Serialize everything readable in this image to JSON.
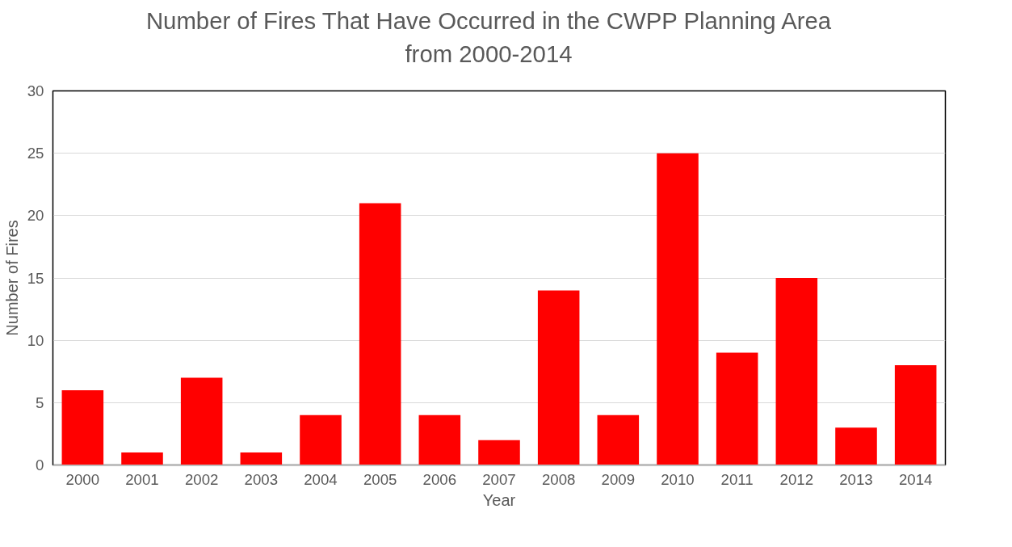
{
  "chart_data": {
    "type": "bar",
    "title": "Number of Fires That Have Occurred in the CWPP Planning Area from 2000-2014",
    "xlabel": "Year",
    "ylabel": "Number of Fires",
    "categories": [
      "2000",
      "2001",
      "2002",
      "2003",
      "2004",
      "2005",
      "2006",
      "2007",
      "2008",
      "2009",
      "2010",
      "2011",
      "2012",
      "2013",
      "2014"
    ],
    "values": [
      6,
      1,
      7,
      1,
      4,
      21,
      4,
      2,
      14,
      4,
      25,
      9,
      15,
      3,
      8
    ],
    "color": "#ff0000",
    "ylim": [
      0,
      30
    ],
    "yticks": [
      0,
      5,
      10,
      15,
      20,
      25,
      30
    ],
    "grid": "y",
    "legend": false
  }
}
